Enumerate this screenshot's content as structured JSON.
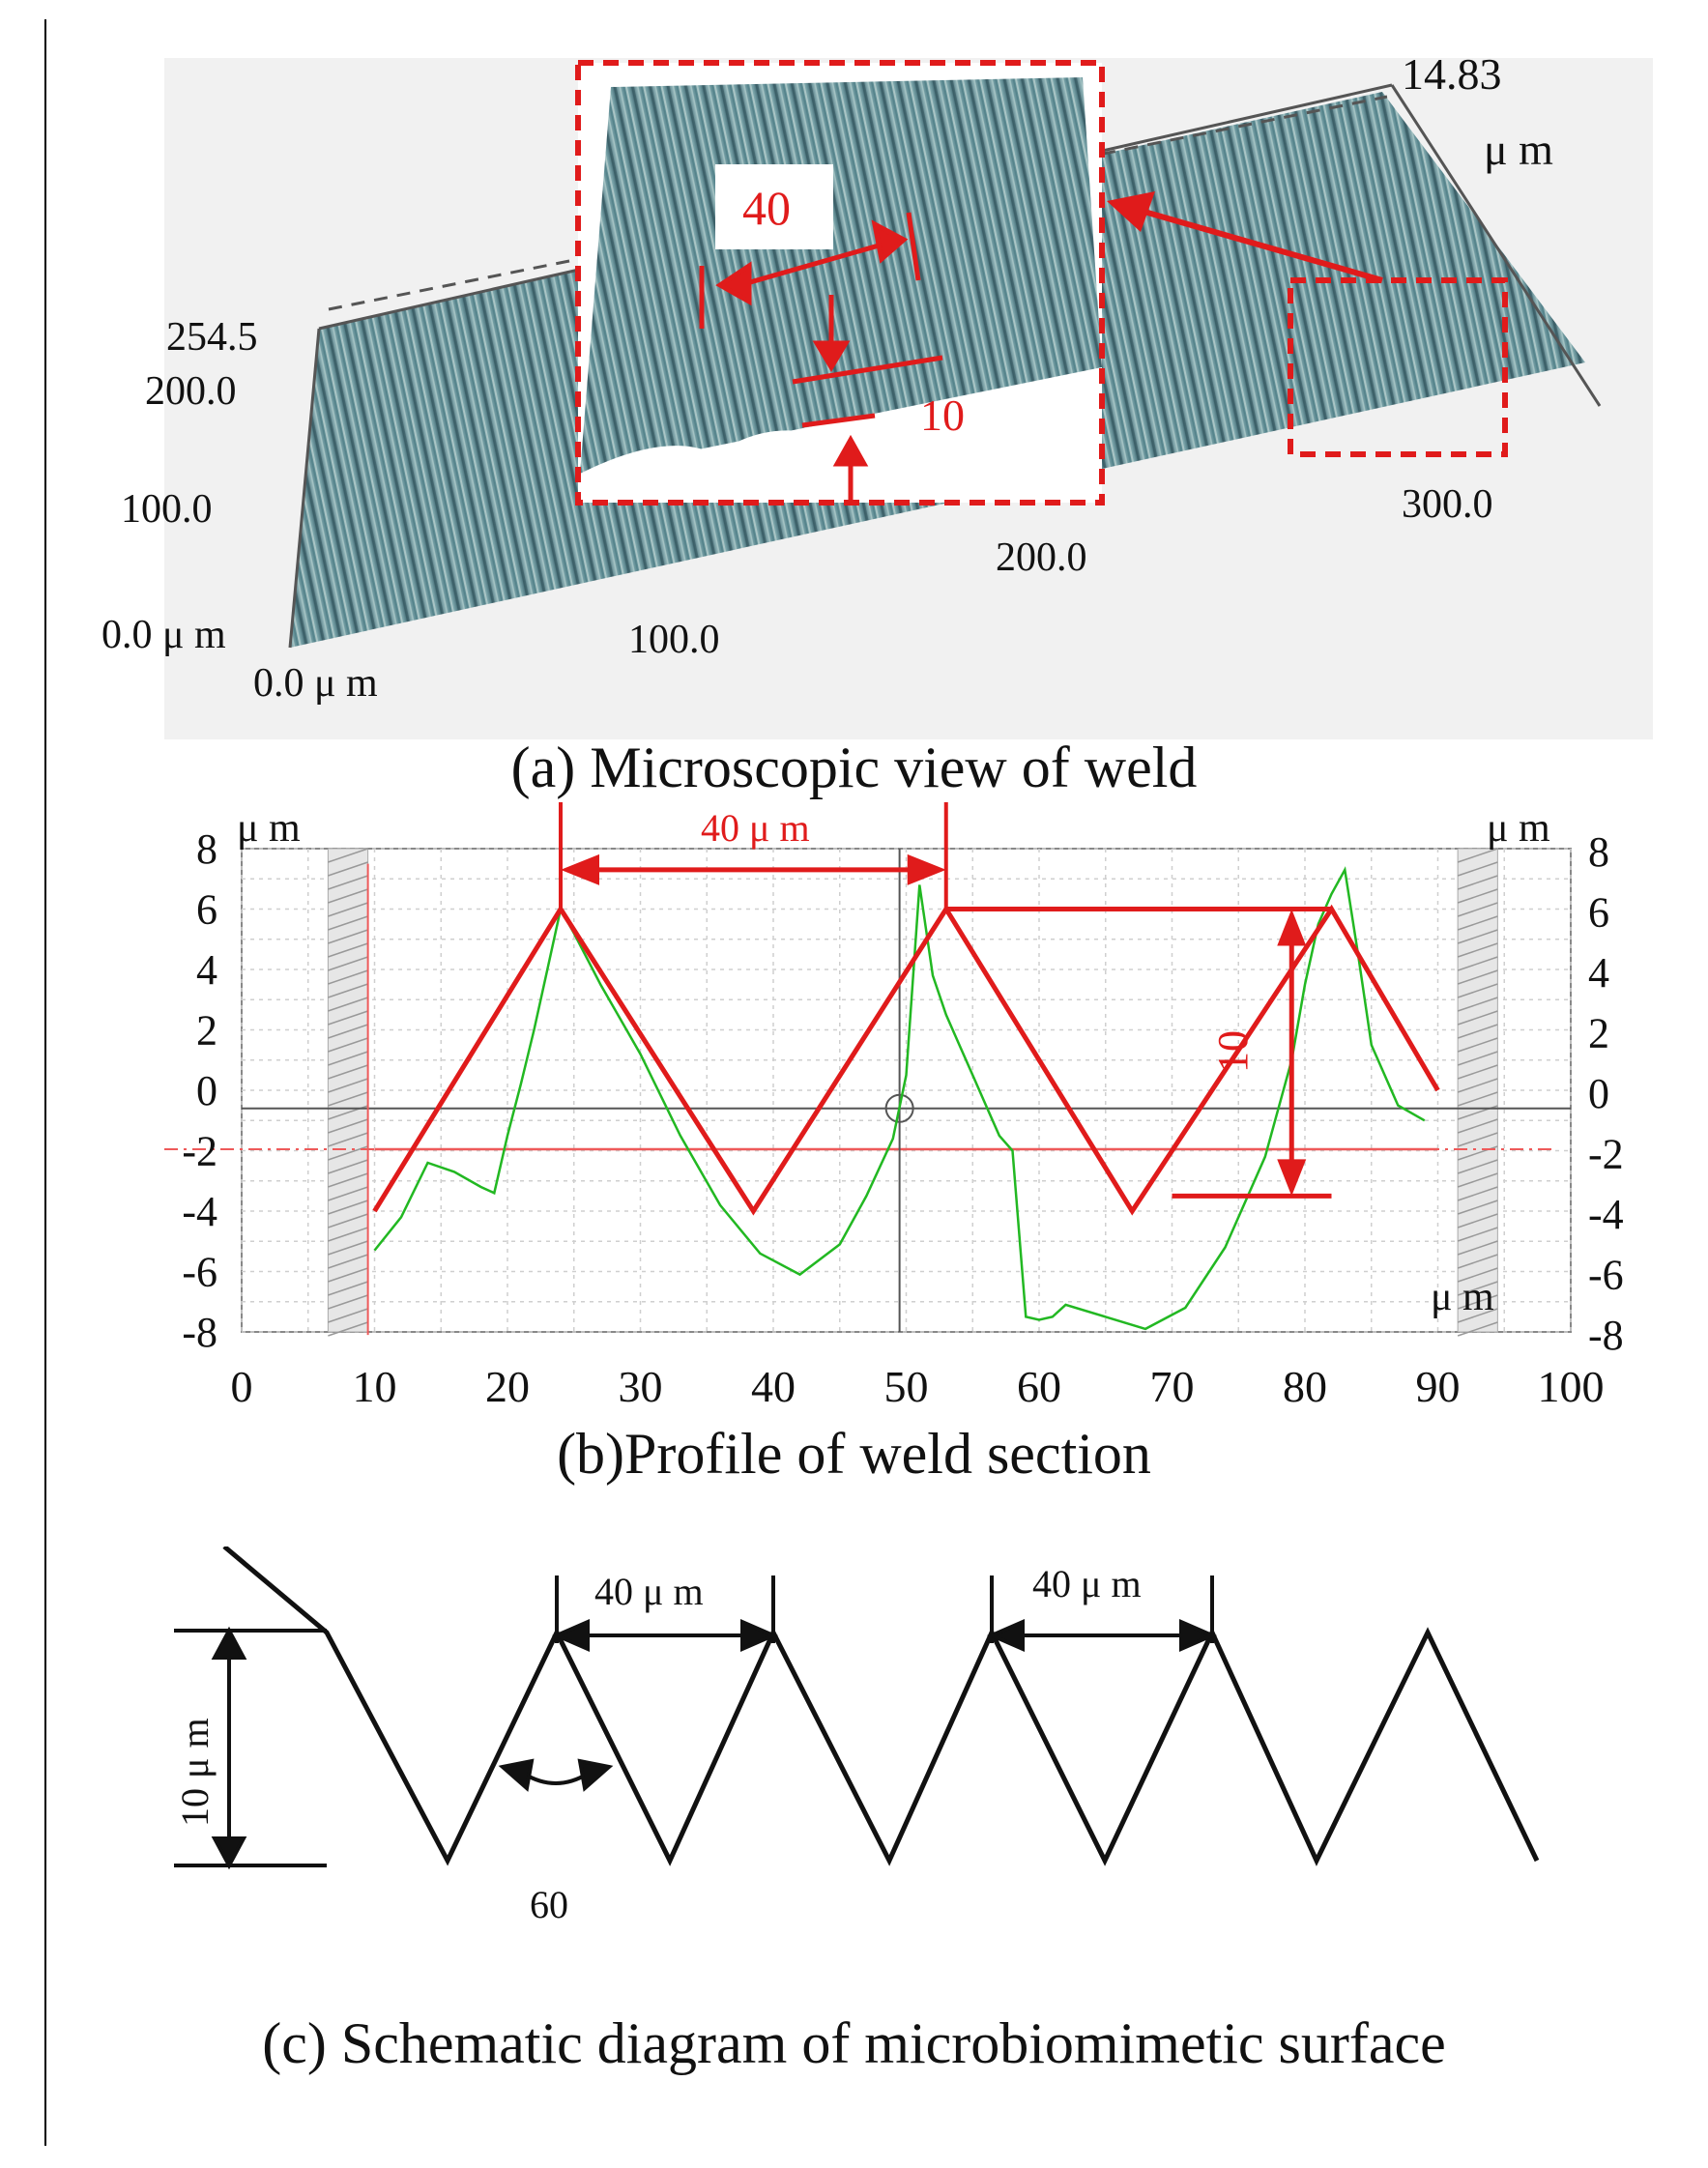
{
  "panel_a": {
    "caption": "(a) Microscopic view of weld",
    "labels": {
      "z_top": "14.83",
      "z_unit": "μ m",
      "y_254": "254.5",
      "y_200": "200.0",
      "y_100": "100.0",
      "y_0": "0.0 μ m",
      "x_0": "0.0 μ m",
      "x_100": "100.0",
      "x_200": "200.0",
      "x_300": "300.0"
    },
    "inset": {
      "width_label": "40",
      "depth_label": "10"
    }
  },
  "panel_b": {
    "caption": "(b)Profile of weld section",
    "unit_tl": "μ m",
    "unit_tr": "μ m",
    "unit_br": "μ m",
    "period_label": "40 μ m",
    "depth_label": "10",
    "colors": {
      "profile": "#22b822",
      "annotation": "#e01b1b",
      "grid": "#cfcfcf"
    }
  },
  "panel_c": {
    "caption": "(c) Schematic diagram of microbiomimetic surface",
    "height_label": "10 μ m",
    "period_label_1": "40 μ m",
    "period_label_2": "40 μ m",
    "angle_label": "60"
  },
  "chart_data": {
    "type": "line",
    "xlim": [
      0,
      100
    ],
    "ylim": [
      -8,
      8
    ],
    "x_ticks": [
      "0",
      "10",
      "20",
      "30",
      "40",
      "50",
      "60",
      "70",
      "80",
      "90",
      "100"
    ],
    "y_ticks": [
      "8",
      "6",
      "4",
      "2",
      "0",
      "-2",
      "-4",
      "-6",
      "-8"
    ],
    "series": [
      {
        "kind": "measured",
        "x": [
          10,
          12,
          14,
          16,
          18,
          19,
          20,
          21,
          22,
          23,
          24,
          25,
          27,
          30,
          33,
          36,
          39,
          42,
          45,
          47,
          49,
          50,
          51,
          52,
          53,
          54,
          55,
          56,
          57,
          58,
          59,
          60,
          61,
          62,
          65,
          68,
          71,
          74,
          77,
          79,
          80,
          81,
          82,
          83,
          84,
          85,
          87,
          89
        ],
        "y": [
          -5.3,
          -4.2,
          -2.4,
          -2.7,
          -3.2,
          -3.4,
          -1.5,
          0.2,
          2.0,
          4.0,
          6.0,
          5.2,
          3.5,
          1.2,
          -1.5,
          -3.8,
          -5.4,
          -6.1,
          -5.1,
          -3.5,
          -1.6,
          0.5,
          6.8,
          3.8,
          2.5,
          1.5,
          0.5,
          -0.5,
          -1.5,
          -2.0,
          -7.5,
          -7.6,
          -7.5,
          -7.1,
          -7.5,
          -7.9,
          -7.2,
          -5.2,
          -2.2,
          1.0,
          3.5,
          5.5,
          6.5,
          7.3,
          4.5,
          1.5,
          -0.5,
          -1.0
        ]
      },
      {
        "kind": "idealized",
        "x": [
          10,
          24,
          38.5,
          53,
          67,
          82,
          90
        ],
        "y": [
          -4,
          6,
          -4,
          6,
          -4,
          6,
          0
        ]
      }
    ],
    "reference_lines": {
      "baseline_y": -0.6,
      "dashed_y": -1.95,
      "crosshair_x": 49.5
    }
  }
}
